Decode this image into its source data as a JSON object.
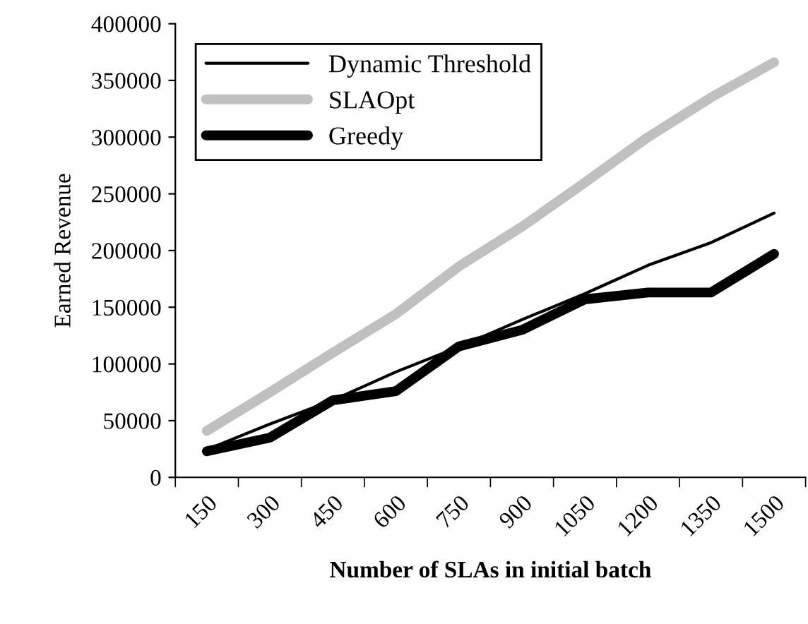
{
  "chart_data": {
    "type": "line",
    "xlabel": "Number of SLAs in initial batch",
    "ylabel": "Earned Revenue",
    "categories": [
      "150",
      "300",
      "450",
      "600",
      "750",
      "900",
      "1050",
      "1200",
      "1350",
      "1500"
    ],
    "series": [
      {
        "name": "Dynamic Threshold",
        "color": "#000000",
        "values": [
          24500,
          47000,
          68000,
          93000,
          115000,
          139000,
          162000,
          187000,
          207000,
          233000
        ]
      },
      {
        "name": "SLAOpt",
        "color": "#c0c0c0",
        "values": [
          41000,
          75000,
          110000,
          144000,
          186000,
          221000,
          260000,
          300000,
          335000,
          366000
        ]
      },
      {
        "name": "Greedy",
        "color": "#000000",
        "values": [
          23000,
          35000,
          68000,
          76000,
          115500,
          130000,
          157000,
          163000,
          163000,
          197000
        ]
      }
    ],
    "ylim": [
      0,
      400000
    ],
    "yticks": [
      0,
      50000,
      100000,
      150000,
      200000,
      250000,
      300000,
      350000,
      400000
    ],
    "grid": false,
    "legend": "top left",
    "marker": "none",
    "line_style": "solid"
  }
}
